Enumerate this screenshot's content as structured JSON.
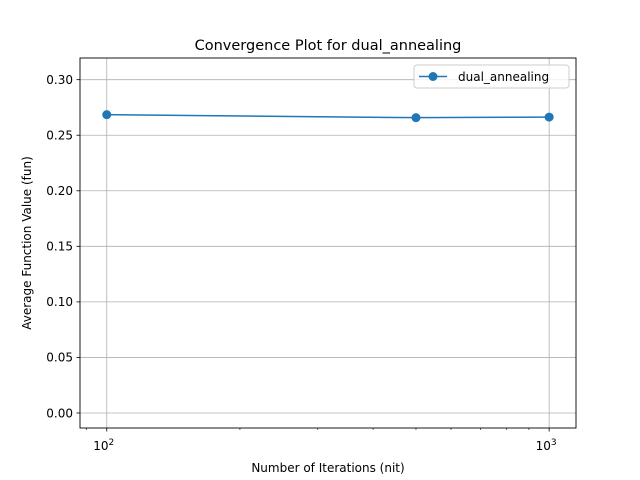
{
  "chart_data": {
    "type": "line",
    "title": "Convergence Plot for dual_annealing",
    "xlabel": "Number of Iterations (nit)",
    "ylabel": "Average Function Value (fun)",
    "xscale": "log",
    "xlim": [
      87,
      1150
    ],
    "ylim": [
      -0.0135,
      0.3195
    ],
    "x_ticks": [
      {
        "value": 100,
        "base": "10",
        "exp": "2"
      },
      {
        "value": 1000,
        "base": "10",
        "exp": "3"
      }
    ],
    "y_ticks": [
      "0.00",
      "0.05",
      "0.10",
      "0.15",
      "0.20",
      "0.25",
      "0.30"
    ],
    "grid": true,
    "legend_position": "top-right",
    "series": [
      {
        "name": "dual_annealing",
        "color": "#1f77b4",
        "marker": "circle",
        "x": [
          100,
          500,
          1000
        ],
        "y": [
          0.2685,
          0.2658,
          0.2663
        ]
      }
    ]
  }
}
